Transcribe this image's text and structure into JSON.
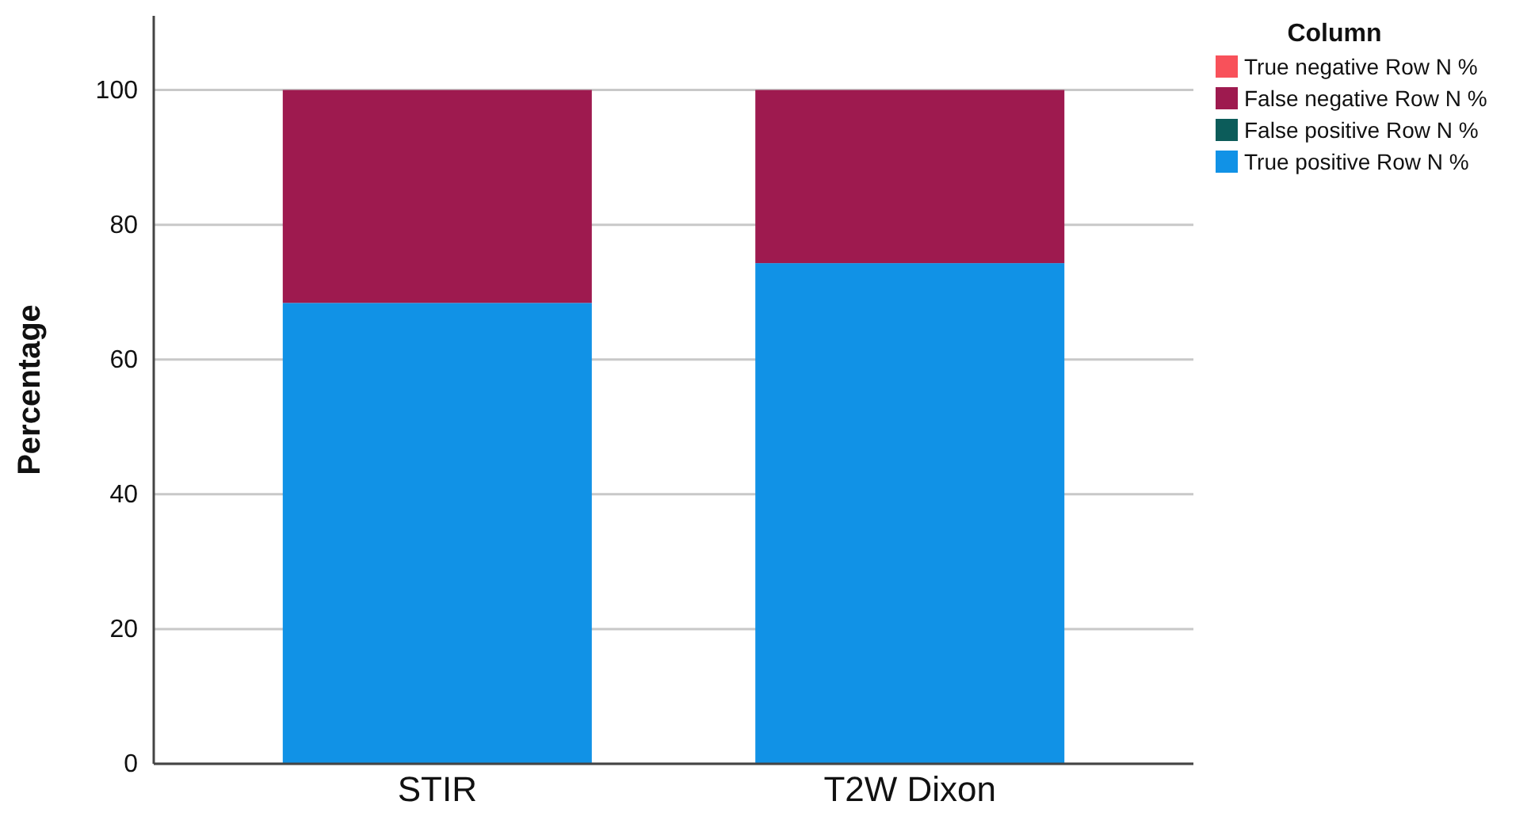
{
  "chart_data": {
    "type": "bar",
    "stacked": true,
    "ylabel": "Percentage",
    "legend_title": "Column",
    "legend": "top right",
    "grid": "y",
    "categories": [
      "STIR",
      "T2W Dixon"
    ],
    "ylim": [
      0,
      111
    ],
    "yticks": [
      0,
      20,
      40,
      60,
      80,
      100
    ],
    "series": [
      {
        "name": "True positive Row N %",
        "color": "#1192e6",
        "values": [
          68.4,
          74.3
        ]
      },
      {
        "name": "False positive Row N %",
        "color": "#0c5c5a",
        "values": [
          0,
          0
        ]
      },
      {
        "name": "False negative Row N %",
        "color": "#9e1a4f",
        "values": [
          31.6,
          25.7
        ]
      },
      {
        "name": "True negative Row N %",
        "color": "#f8515a",
        "values": [
          0,
          0
        ]
      }
    ]
  }
}
